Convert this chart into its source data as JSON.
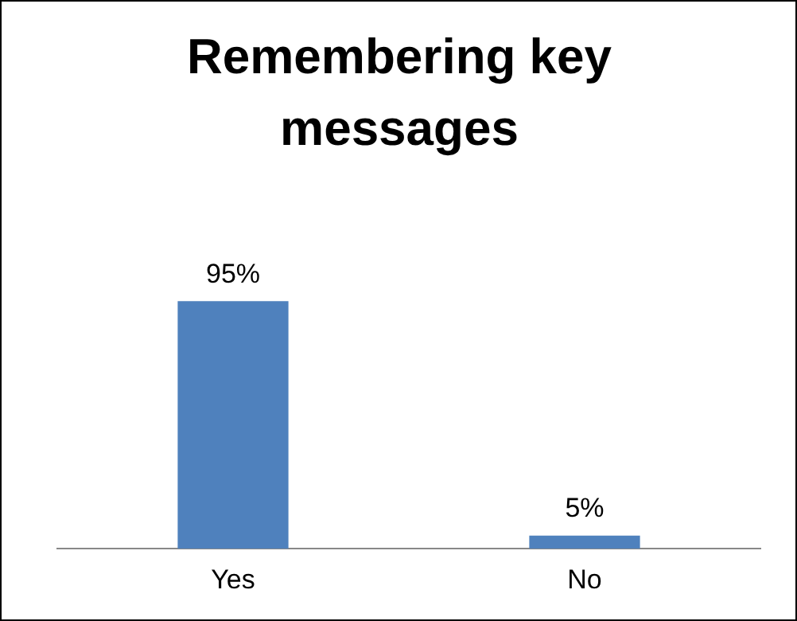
{
  "chart_data": {
    "type": "bar",
    "title": "Remembering key messages",
    "categories": [
      "Yes",
      "No"
    ],
    "values": [
      95,
      5
    ],
    "value_labels": [
      "95%",
      "5%"
    ],
    "color": "#4f81bd",
    "legend": false,
    "grid": false
  }
}
